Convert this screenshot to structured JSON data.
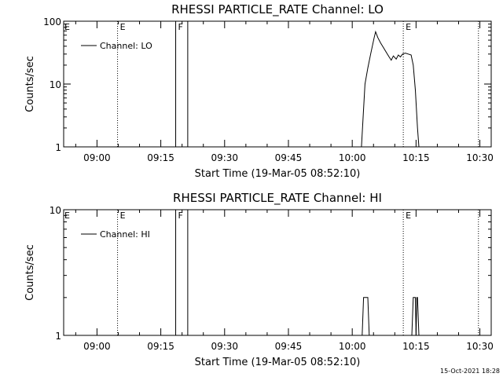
{
  "footer_timestamp": "15-Oct-2021 18:28",
  "chart_data": [
    {
      "type": "line",
      "title": "RHESSI PARTICLE_RATE Channel: LO",
      "xlabel": "Start Time (19-Mar-05 08:52:10)",
      "ylabel": "Counts/sec",
      "y_scale": "log",
      "ylim": [
        1,
        100
      ],
      "y_ticks": [
        {
          "value": 1,
          "label": "1"
        },
        {
          "value": 10,
          "label": "10"
        },
        {
          "value": 100,
          "label": "100"
        }
      ],
      "xlim": [
        "08:52:10",
        "10:32:40"
      ],
      "x_ticks": [
        "09:00",
        "09:15",
        "09:30",
        "09:45",
        "10:00",
        "10:15",
        "10:30"
      ],
      "legend": {
        "position": "top-left",
        "entries": [
          "Channel: LO"
        ]
      },
      "markers": [
        {
          "time": "09:04:50",
          "label": "E",
          "style": "dotted"
        },
        {
          "time": "09:18:30",
          "label": "F",
          "style": "solid"
        },
        {
          "time": "09:21:20",
          "label": "",
          "style": "solid"
        },
        {
          "time": "10:12:00",
          "label": "E",
          "style": "dotted"
        },
        {
          "time": "10:29:40",
          "label": "",
          "style": "dotted"
        }
      ],
      "series": [
        {
          "name": "Channel: LO",
          "points": [
            [
              "10:02:10",
              1
            ],
            [
              "10:02:40",
              4
            ],
            [
              "10:03:00",
              10
            ],
            [
              "10:03:40",
              18
            ],
            [
              "10:04:20",
              30
            ],
            [
              "10:05:10",
              55
            ],
            [
              "10:05:30",
              68
            ],
            [
              "10:06:00",
              55
            ],
            [
              "10:06:40",
              45
            ],
            [
              "10:07:20",
              38
            ],
            [
              "10:08:00",
              32
            ],
            [
              "10:08:40",
              27
            ],
            [
              "10:09:10",
              24
            ],
            [
              "10:09:40",
              28
            ],
            [
              "10:10:20",
              25
            ],
            [
              "10:10:50",
              29
            ],
            [
              "10:11:20",
              27
            ],
            [
              "10:11:50",
              30
            ],
            [
              "10:12:30",
              31
            ],
            [
              "10:13:10",
              30
            ],
            [
              "10:13:50",
              29
            ],
            [
              "10:14:20",
              20
            ],
            [
              "10:14:50",
              8
            ],
            [
              "10:15:20",
              2
            ],
            [
              "10:15:40",
              1
            ]
          ]
        }
      ]
    },
    {
      "type": "line",
      "title": "RHESSI PARTICLE_RATE Channel: HI",
      "xlabel": "Start Time (19-Mar-05 08:52:10)",
      "ylabel": "Counts/sec",
      "y_scale": "log",
      "ylim": [
        1,
        10
      ],
      "y_ticks": [
        {
          "value": 1,
          "label": "1"
        },
        {
          "value": 10,
          "label": "10"
        }
      ],
      "xlim": [
        "08:52:10",
        "10:32:40"
      ],
      "x_ticks": [
        "09:00",
        "09:15",
        "09:30",
        "09:45",
        "10:00",
        "10:15",
        "10:30"
      ],
      "legend": {
        "position": "top-left",
        "entries": [
          "Channel: HI"
        ]
      },
      "markers": [
        {
          "time": "09:04:50",
          "label": "E",
          "style": "dotted"
        },
        {
          "time": "09:18:30",
          "label": "F",
          "style": "solid"
        },
        {
          "time": "09:21:20",
          "label": "",
          "style": "solid"
        },
        {
          "time": "10:12:00",
          "label": "E",
          "style": "dotted"
        },
        {
          "time": "10:29:40",
          "label": "",
          "style": "dotted"
        }
      ],
      "series": [
        {
          "name": "Channel: HI",
          "points": [
            [
              "10:02:20",
              1
            ],
            [
              "10:02:40",
              2
            ],
            [
              "10:03:40",
              2
            ],
            [
              "10:04:00",
              1
            ],
            [
              "10:14:00",
              1
            ],
            [
              "10:14:20",
              2
            ],
            [
              "10:14:50",
              2
            ],
            [
              "10:15:00",
              1
            ],
            [
              "10:15:10",
              2
            ],
            [
              "10:15:20",
              2
            ],
            [
              "10:15:40",
              1
            ]
          ]
        }
      ]
    }
  ]
}
